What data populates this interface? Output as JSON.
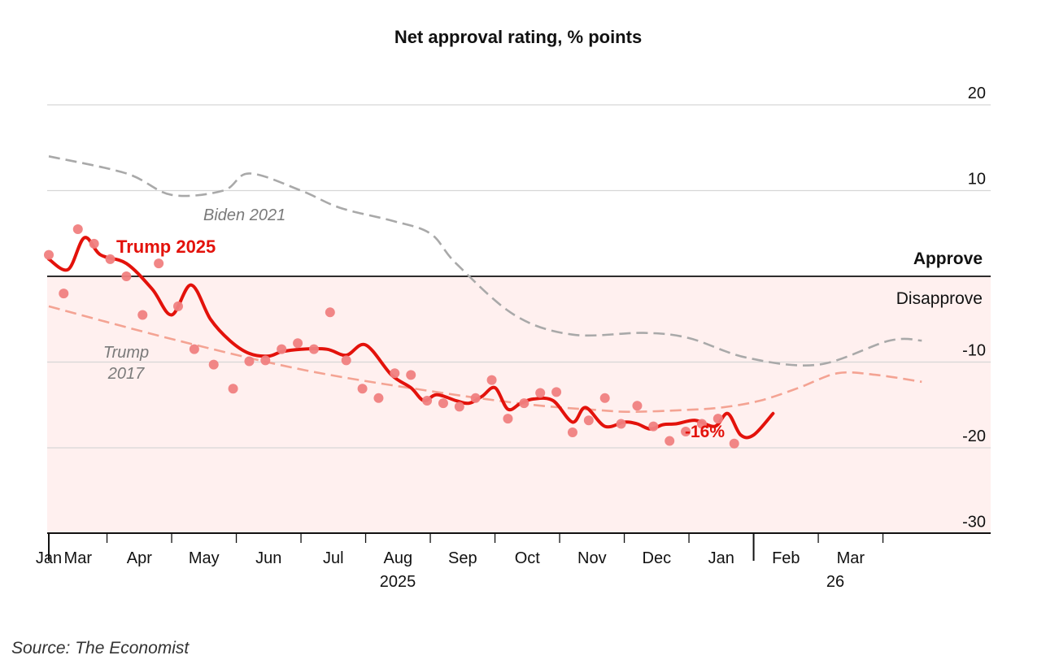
{
  "chart_data": {
    "type": "line",
    "title": "Net approval rating, % points",
    "ylim": [
      -30,
      20
    ],
    "y_ticks": [
      20,
      10,
      -10,
      -20,
      -30
    ],
    "y_tick_labels": [
      "20",
      "10",
      "-10",
      "-20",
      "-30"
    ],
    "x_months": [
      "Jan",
      "Mar",
      "Apr",
      "May",
      "Jun",
      "Jul",
      "Aug",
      "Sep",
      "Oct",
      "Nov",
      "Dec",
      "Jan",
      "Feb",
      "Mar"
    ],
    "x_years": [
      "2025",
      "26"
    ],
    "zones": {
      "approve_label": "Approve",
      "disapprove_label": "Disapprove"
    },
    "annotations": {
      "latest": "-16%"
    },
    "series": [
      {
        "name": "Trump 2025",
        "label": "Trump 2025",
        "color": "#e3120b",
        "t": [
          0,
          0.3,
          0.55,
          0.8,
          1.2,
          1.6,
          1.9,
          2.2,
          2.5,
          2.8,
          3.1,
          3.4,
          3.6,
          3.9,
          4.3,
          4.6,
          4.9,
          5.3,
          5.6,
          5.8,
          6.0,
          6.3,
          6.5,
          6.7,
          6.9,
          7.1,
          7.3,
          7.5,
          7.8,
          8.1,
          8.3,
          8.6,
          8.9,
          9.1,
          9.3,
          9.5,
          9.7,
          10.0,
          10.3,
          10.5,
          10.7,
          10.9,
          11.2
        ],
        "values": [
          2,
          0.8,
          4.5,
          2.5,
          1.5,
          -1.5,
          -4.5,
          -1,
          -5,
          -7.5,
          -9,
          -9.3,
          -8.8,
          -8.5,
          -8.5,
          -9.2,
          -8,
          -11.5,
          -13,
          -14.5,
          -13.8,
          -14.5,
          -14.8,
          -14,
          -13,
          -15.5,
          -14.8,
          -14.3,
          -14.5,
          -17,
          -15.3,
          -17.5,
          -17,
          -17.2,
          -17.8,
          -17.3,
          -17.2,
          -16.8,
          -17.5,
          -16,
          -18.5,
          -18.5,
          -16
        ]
      },
      {
        "name": "Trump 2025 polls",
        "type": "scatter",
        "color": "#f08080",
        "t": [
          0,
          0.23,
          0.45,
          0.7,
          0.95,
          1.2,
          1.45,
          1.7,
          2.0,
          2.25,
          2.55,
          2.85,
          3.1,
          3.35,
          3.6,
          3.85,
          4.1,
          4.35,
          4.6,
          4.85,
          5.1,
          5.35,
          5.6,
          5.85,
          6.1,
          6.35,
          6.6,
          6.85,
          7.1,
          7.35,
          7.6,
          7.85,
          8.1,
          8.35,
          8.6,
          8.85,
          9.1,
          9.35,
          9.6,
          9.85,
          10.1,
          10.35,
          10.6
        ],
        "values": [
          2.5,
          -2,
          5.5,
          3.8,
          2,
          0,
          -4.5,
          1.5,
          -3.5,
          -8.5,
          -10.3,
          -13.1,
          -9.9,
          -9.8,
          -8.5,
          -7.8,
          -8.5,
          -4.2,
          -9.8,
          -13.1,
          -14.2,
          -11.3,
          -11.5,
          -14.5,
          -14.8,
          -15.2,
          -14.2,
          -12.1,
          -16.6,
          -14.8,
          -13.6,
          -13.5,
          -18.2,
          -16.8,
          -14.2,
          -17.2,
          -15.1,
          -17.5,
          -19.2,
          -18.1,
          -17.2,
          -16.6,
          -19.5
        ]
      },
      {
        "name": "Trump 2017",
        "label": "Trump\n2017",
        "style": "dashed",
        "color": "#f4a393",
        "t": [
          0,
          2,
          4,
          6,
          7.5,
          8.5,
          9,
          9.8,
          10.4,
          11,
          11.6,
          12.2,
          12.8,
          13.5
        ],
        "values": [
          -3.5,
          -7.5,
          -11,
          -13.5,
          -15,
          -15.6,
          -15.8,
          -15.6,
          -15.3,
          -14.5,
          -13,
          -11.3,
          -11.5,
          -12.3
        ]
      },
      {
        "name": "Biden 2021",
        "label": "Biden 2021",
        "style": "dashed",
        "color": "#a9a9a9",
        "t": [
          0,
          1.2,
          1.9,
          2.7,
          3.1,
          3.9,
          4.5,
          5.3,
          5.9,
          6.3,
          7.2,
          8.1,
          9.2,
          9.9,
          10.8,
          11.9,
          13.0,
          13.5
        ],
        "values": [
          14,
          12,
          9.5,
          10,
          12,
          10,
          8,
          6.5,
          5,
          1.5,
          -4.5,
          -6.8,
          -6.6,
          -7.2,
          -9.5,
          -10.3,
          -7.5,
          -7.5
        ]
      }
    ]
  }
}
